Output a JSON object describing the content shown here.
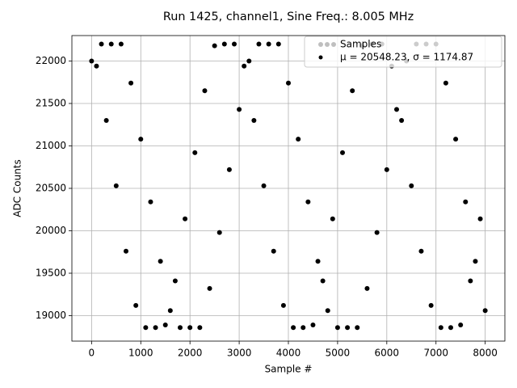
{
  "chart_data": {
    "type": "scatter",
    "title": "Run 1425, channel1, Sine Freq.: 8.005 MHz",
    "x_label": "Sample #",
    "y_label": "ADC Counts",
    "annotation": "μ = 20548.23, σ = 1174.87",
    "x": [
      0,
      100,
      200,
      300,
      400,
      500,
      600,
      700,
      800,
      900,
      1000,
      1100,
      1200,
      1300,
      1400,
      1500,
      1600,
      1700,
      1800,
      1900,
      2000,
      2100,
      2200,
      2300,
      2400,
      2500,
      2600,
      2700,
      2800,
      2900,
      3000,
      3100,
      3200,
      3300,
      3400,
      3500,
      3600,
      3700,
      3800,
      3900,
      4000,
      4100,
      4200,
      4300,
      4400,
      4500,
      4600,
      4700,
      4800,
      4900,
      5000,
      5100,
      5200,
      5300,
      5400,
      5500,
      5600,
      5700,
      5800,
      5900,
      6000,
      6100,
      6200,
      6300,
      6400,
      6500,
      6600,
      6700,
      6800,
      6900,
      7000,
      7100,
      7200,
      7300,
      7400,
      7500,
      7600,
      7700,
      7800,
      7900,
      8000
    ],
    "series": [
      {
        "name": "Samples",
        "color": "#000000",
        "values": [
          22000,
          21940,
          22200,
          21300,
          22200,
          20530,
          22200,
          19760,
          21740,
          19120,
          21080,
          18860,
          20340,
          18860,
          19640,
          18890,
          19060,
          19410,
          18860,
          20140,
          18860,
          20920,
          18860,
          21650,
          19320,
          22180,
          19980,
          22200,
          20720,
          22200,
          21430,
          21940,
          22000,
          21300,
          22200,
          20530,
          22200,
          19760,
          22200,
          19120,
          21740,
          18860,
          21080,
          18860,
          20340,
          18890,
          19640,
          19410,
          19060,
          20140,
          18860,
          20920,
          18860,
          21650,
          18860,
          22180,
          19320,
          22200,
          19980,
          22200,
          20720,
          21940,
          21430,
          21300,
          22000,
          20530,
          22200,
          19760,
          22200,
          19120,
          22200,
          18860,
          21740,
          18860,
          21080,
          18890,
          20340,
          19410,
          19640,
          20140,
          19060
        ]
      }
    ],
    "xlim": [
      -400,
      8400
    ],
    "ylim": [
      18700,
      22300
    ],
    "xticks": [
      0,
      1000,
      2000,
      3000,
      4000,
      5000,
      6000,
      7000,
      8000
    ],
    "yticks": [
      19000,
      19500,
      20000,
      20500,
      21000,
      21500,
      22000
    ],
    "grid": true,
    "legend": "upper right"
  }
}
